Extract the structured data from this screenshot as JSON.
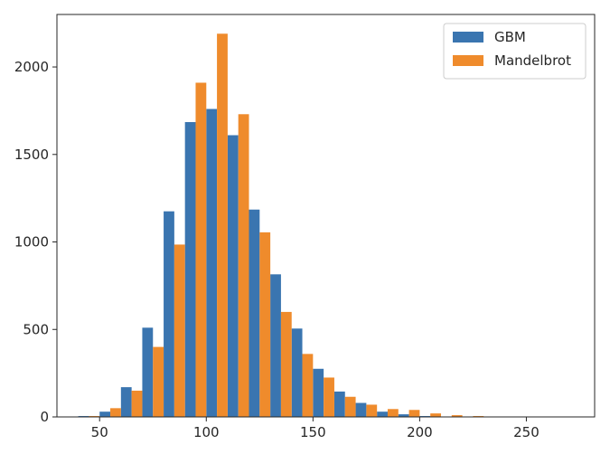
{
  "chart_data": {
    "type": "bar",
    "title": "",
    "xlabel": "",
    "ylabel": "",
    "xlim": [
      30,
      282
    ],
    "ylim": [
      0,
      2300
    ],
    "x_ticks": [
      50,
      100,
      150,
      200,
      250
    ],
    "y_ticks": [
      0,
      500,
      1000,
      1500,
      2000
    ],
    "grid": false,
    "legend_position": "top-right",
    "bin_centers": [
      45,
      55,
      65,
      75,
      85,
      95,
      105,
      115,
      125,
      135,
      145,
      155,
      165,
      175,
      185,
      195,
      205,
      215,
      225,
      235,
      245,
      255,
      265,
      275
    ],
    "series": [
      {
        "name": "GBM",
        "color": "#3a75b0",
        "values": [
          5,
          30,
          170,
          510,
          1175,
          1685,
          1760,
          1610,
          1185,
          815,
          505,
          275,
          145,
          80,
          30,
          15,
          5,
          2,
          1,
          0,
          0,
          0,
          0,
          0
        ]
      },
      {
        "name": "Mandelbrot",
        "color": "#ef8b2c",
        "values": [
          5,
          50,
          150,
          400,
          985,
          1910,
          2190,
          1730,
          1055,
          600,
          360,
          225,
          115,
          70,
          45,
          40,
          20,
          10,
          5,
          2,
          1,
          0,
          0,
          0
        ]
      }
    ]
  }
}
